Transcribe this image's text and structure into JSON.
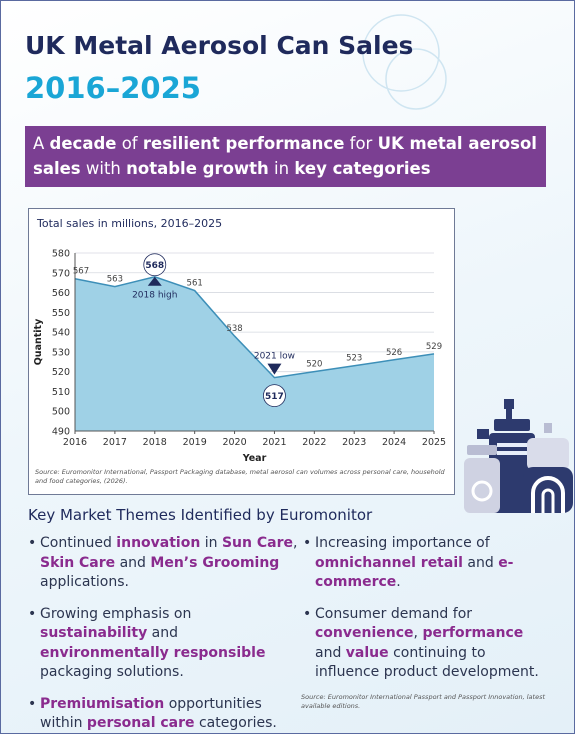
{
  "header": {
    "title": "UK Metal Aerosol Can Sales",
    "subtitle": "2016–2025"
  },
  "banner": [
    {
      "text": "A ",
      "bold": false
    },
    {
      "text": "decade",
      "bold": true
    },
    {
      "text": " of ",
      "bold": false
    },
    {
      "text": "resilient performance",
      "bold": true
    },
    {
      "text": " for ",
      "bold": false
    },
    {
      "text": "UK metal aerosol sales",
      "bold": true
    },
    {
      "text": " with ",
      "bold": false
    },
    {
      "text": "notable growth",
      "bold": true
    },
    {
      "text": " in ",
      "bold": false
    },
    {
      "text": "key categories",
      "bold": true
    }
  ],
  "chart_data": {
    "type": "area",
    "title": "Total sales in millions, 2016–2025",
    "x": [
      2016,
      2017,
      2018,
      2019,
      2020,
      2021,
      2022,
      2023,
      2024,
      2025
    ],
    "values": [
      567,
      563,
      568,
      561,
      538,
      517,
      520,
      523,
      526,
      529
    ],
    "xlim": [
      2016,
      2025
    ],
    "xticks": [
      2016,
      2017,
      2018,
      2019,
      2020,
      2021,
      2022,
      2023,
      2024,
      2025
    ],
    "ylim": [
      490,
      580
    ],
    "yticks": [
      490,
      500,
      510,
      520,
      530,
      540,
      550,
      560,
      570,
      580
    ],
    "xlabel": "Year",
    "ylabel": "Quantity",
    "color": "#9fd1e6",
    "line_color": "#3d8fb8",
    "annotations": [
      {
        "text": "2018 high",
        "x": 2018,
        "position": "below"
      },
      {
        "text": "2021 low",
        "x": 2021,
        "position": "above"
      }
    ],
    "source": "Source: Euromonitor International, Passport Packaging database, metal aerosol can volumes across personal care, household and food categories, (2026)."
  },
  "themes": {
    "heading": "Key Market Themes Identified by Euromonitor",
    "left": [
      [
        {
          "text": "Continued ",
          "em": false
        },
        {
          "text": "innovation",
          "em": true
        },
        {
          "text": " in ",
          "em": false
        },
        {
          "text": "Sun Care",
          "em": true
        },
        {
          "text": ", ",
          "em": false
        },
        {
          "text": "Skin Care",
          "em": true
        },
        {
          "text": " and ",
          "em": false
        },
        {
          "text": "Men’s Grooming",
          "em": true
        },
        {
          "text": " applications.",
          "em": false
        }
      ],
      [
        {
          "text": "Growing emphasis on ",
          "em": false
        },
        {
          "text": "sustainability",
          "em": true
        },
        {
          "text": " and ",
          "em": false
        },
        {
          "text": "environmentally responsible",
          "em": true
        },
        {
          "text": " packaging solutions.",
          "em": false
        }
      ],
      [
        {
          "text": "Premiumisation",
          "em": true
        },
        {
          "text": " opportunities within ",
          "em": false
        },
        {
          "text": "personal care",
          "em": true
        },
        {
          "text": " categories.",
          "em": false
        }
      ]
    ],
    "right": [
      [
        {
          "text": "Increasing importance of ",
          "em": false
        },
        {
          "text": "omnichannel retail",
          "em": true
        },
        {
          "text": " and ",
          "em": false
        },
        {
          "text": "e-commerce",
          "em": true
        },
        {
          "text": ".",
          "em": false
        }
      ],
      [
        {
          "text": "Consumer demand for ",
          "em": false
        },
        {
          "text": "convenience",
          "em": true
        },
        {
          "text": ", ",
          "em": false
        },
        {
          "text": "performance",
          "em": true
        },
        {
          "text": " and ",
          "em": false
        },
        {
          "text": "value",
          "em": true
        },
        {
          "text": " continuing to influence product development.",
          "em": false
        }
      ]
    ],
    "source": "Source: Euromonitor International Passport and Passport Innovation, latest available editions."
  }
}
